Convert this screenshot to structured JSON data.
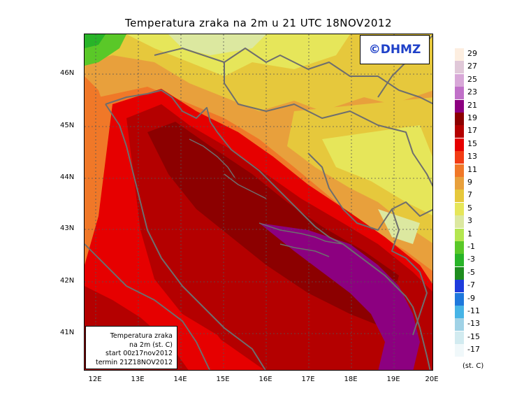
{
  "title": "Temperatura zraka na 2m u 21 UTC 18NOV2012",
  "watermark": "©DHMZ",
  "info_box": {
    "line1": "Temperatura zraka",
    "line2": "na 2m (st. C)",
    "line3": "start 00z17nov2012",
    "line4": "termin 21Z18NOV2012"
  },
  "axes": {
    "lat_labels": [
      "46N",
      "45N",
      "44N",
      "43N",
      "42N",
      "41N"
    ],
    "lon_labels": [
      "12E",
      "13E",
      "14E",
      "15E",
      "16E",
      "17E",
      "18E",
      "19E",
      "20E"
    ]
  },
  "legend": {
    "unit": "(st. C)",
    "values": [
      "29",
      "27",
      "25",
      "23",
      "21",
      "19",
      "17",
      "15",
      "13",
      "11",
      "9",
      "7",
      "5",
      "3",
      "1",
      "-1",
      "-3",
      "-5",
      "-7",
      "-9",
      "-11",
      "-13",
      "-15",
      "-17"
    ],
    "colors": [
      "#fdeee0",
      "#e0c8d8",
      "#d8a8d8",
      "#c070c8",
      "#8c0080",
      "#8c0000",
      "#b40000",
      "#e60000",
      "#f23c14",
      "#f07828",
      "#e8a03c",
      "#e6c83c",
      "#e6e65a",
      "#dce8a0",
      "#b4e650",
      "#5ac828",
      "#28b428",
      "#1e8c1e",
      "#1e3cdc",
      "#1e78dc",
      "#46b4e6",
      "#a0d2e6",
      "#d2ebf0",
      "#f0f8fa"
    ]
  }
}
